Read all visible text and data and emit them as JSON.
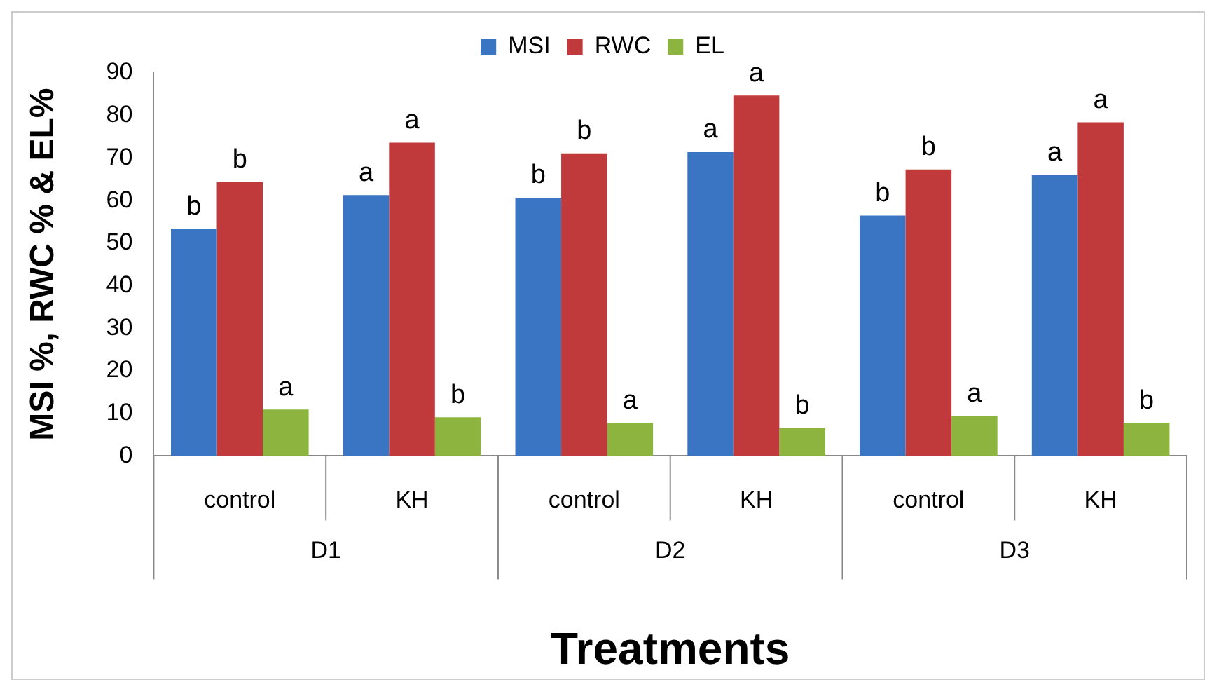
{
  "chart_data": {
    "type": "bar",
    "xlabel": "Treatments",
    "ylabel": "MSI %, RWC % & EL%",
    "categories": [
      "control",
      "KH",
      "control",
      "KH",
      "control",
      "KH"
    ],
    "annotations": [
      "D1",
      "D2",
      "D3"
    ],
    "series": [
      {
        "name": "MSI",
        "color": "#3a75c4",
        "values": [
          53.4,
          61.3,
          60.7,
          71.4,
          56.5,
          66.0
        ],
        "value_labels": [
          "b",
          "a",
          "b",
          "a",
          "b",
          "a"
        ]
      },
      {
        "name": "RWC",
        "color": "#c0393b",
        "values": [
          64.3,
          73.6,
          71.1,
          84.7,
          67.3,
          78.4
        ],
        "value_labels": [
          "b",
          "a",
          "b",
          "a",
          "b",
          "a"
        ]
      },
      {
        "name": "EL",
        "color": "#8db43e",
        "values": [
          10.9,
          9.1,
          7.8,
          6.5,
          9.4,
          7.8
        ],
        "value_labels": [
          "a",
          "b",
          "a",
          "b",
          "a",
          "b"
        ]
      }
    ],
    "ylim": [
      0,
      90
    ],
    "yticks": [
      0,
      10,
      20,
      30,
      40,
      50,
      60,
      70,
      80,
      90
    ],
    "grid": false,
    "legend": "top"
  }
}
